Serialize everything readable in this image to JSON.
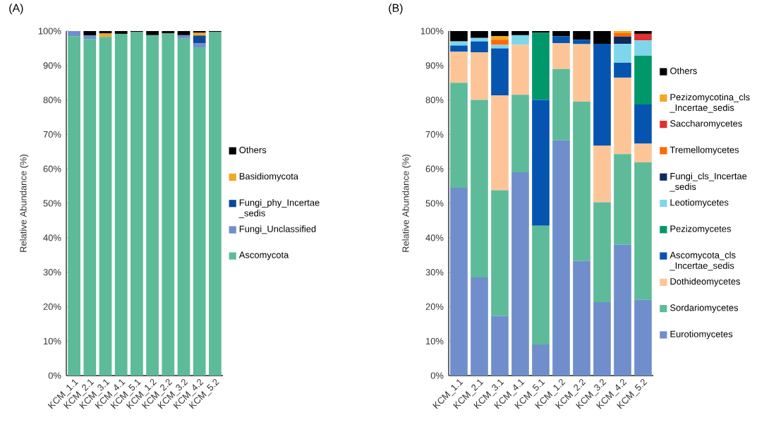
{
  "chart_data": [
    {
      "type": "bar",
      "title": "(A)",
      "ylabel": "Relative Abundance (%)",
      "stacked": true,
      "legend": "right",
      "categories": [
        "KCM_1.1",
        "KCM_2.1",
        "KCM_3.1",
        "KCM_4.1",
        "KCM_5.1",
        "KCM_1.2",
        "KCM_2.2",
        "KCM_3.2",
        "KCM_4.2",
        "KCM_5.2"
      ],
      "ylim": [
        0,
        100
      ],
      "yticks": [
        {
          "value": 0,
          "label": "0%"
        },
        {
          "value": 10,
          "label": "10%"
        },
        {
          "value": 20,
          "label": "20%"
        },
        {
          "value": 30,
          "label": "30%"
        },
        {
          "value": 40,
          "label": "40%"
        },
        {
          "value": 50,
          "label": "50%"
        },
        {
          "value": 60,
          "label": "60%"
        },
        {
          "value": 70,
          "label": "70%"
        },
        {
          "value": 80,
          "label": "80%"
        },
        {
          "value": 90,
          "label": "90%"
        },
        {
          "value": 100,
          "label": "100%"
        }
      ],
      "series": [
        {
          "name": "Ascomycota",
          "color": "#5dbb9a",
          "values": [
            98.5,
            97.7,
            98.3,
            99.2,
            99.7,
            98.8,
            99.3,
            97.8,
            95.3,
            99.7
          ]
        },
        {
          "name": "Fungi_Unclassified",
          "color": "#6f8ecb",
          "values": [
            1.5,
            1.0,
            null,
            null,
            null,
            null,
            null,
            1.0,
            1.2,
            null
          ]
        },
        {
          "name": "Fungi_phy_Incertae_sedis",
          "color": "#0b4a9a",
          "values": [
            null,
            null,
            null,
            null,
            null,
            null,
            null,
            null,
            2.2,
            null
          ]
        },
        {
          "name": "Basidiomycota",
          "color": "#f5a623",
          "values": [
            null,
            null,
            1.0,
            null,
            null,
            null,
            null,
            null,
            0.8,
            null
          ]
        },
        {
          "name": "Others",
          "color": "#000000",
          "values": [
            null,
            1.3,
            0.7,
            0.8,
            0.3,
            1.2,
            0.7,
            1.2,
            0.5,
            0.3
          ]
        }
      ]
    },
    {
      "type": "bar",
      "title": "(B)",
      "ylabel": "Relative Abundance (%)",
      "stacked": true,
      "legend": "right",
      "categories": [
        "KCM_1.1",
        "KCM_2.1",
        "KCM_3.1",
        "KCM_4.1",
        "KCM_5.1",
        "KCM_1.2",
        "KCM_2.2",
        "KCM_3.2",
        "KCM_4.2",
        "KCM_5.2"
      ],
      "ylim": [
        0,
        100
      ],
      "yticks": [
        {
          "value": 0,
          "label": "0%"
        },
        {
          "value": 10,
          "label": "10%"
        },
        {
          "value": 20,
          "label": "20%"
        },
        {
          "value": 30,
          "label": "30%"
        },
        {
          "value": 40,
          "label": "40%"
        },
        {
          "value": 50,
          "label": "50%"
        },
        {
          "value": 60,
          "label": "60%"
        },
        {
          "value": 70,
          "label": "70%"
        },
        {
          "value": 80,
          "label": "80%"
        },
        {
          "value": 90,
          "label": "90%"
        },
        {
          "value": 100,
          "label": "100%"
        }
      ],
      "series": [
        {
          "name": "Eurotiomycetes",
          "color": "#6f8ecb",
          "values": [
            54.5,
            28.5,
            17.3,
            59.0,
            9.0,
            68.3,
            33.3,
            21.3,
            38.0,
            22.0
          ]
        },
        {
          "name": "Sordariomycetes",
          "color": "#5dbb9a",
          "values": [
            30.5,
            51.5,
            36.5,
            22.5,
            34.5,
            20.7,
            46.2,
            29.0,
            26.3,
            39.9
          ]
        },
        {
          "name": "Dothideomycetes",
          "color": "#fdc597",
          "values": [
            9.0,
            13.8,
            27.5,
            14.5,
            null,
            7.5,
            16.7,
            16.4,
            22.2,
            5.4
          ]
        },
        {
          "name": "Ascomycota_cls_Incertae_sedis",
          "color": "#0554b0",
          "values": [
            1.8,
            3.2,
            13.7,
            null,
            36.5,
            2.0,
            1.3,
            29.6,
            4.3,
            11.4
          ]
        },
        {
          "name": "Pezizomycetes",
          "color": "#00976a",
          "values": [
            null,
            null,
            null,
            null,
            19.5,
            null,
            null,
            null,
            null,
            14.2
          ]
        },
        {
          "name": "Leotiomycetes",
          "color": "#7dd6ea",
          "values": [
            1.2,
            1.0,
            1.0,
            2.8,
            null,
            null,
            null,
            null,
            5.5,
            4.4
          ]
        },
        {
          "name": "Fungi_cls_Incertae_sedis",
          "color": "#0d2b5c",
          "values": [
            null,
            null,
            null,
            null,
            null,
            null,
            null,
            null,
            2.1,
            null
          ]
        },
        {
          "name": "Tremellomycetes",
          "color": "#ff6a00",
          "values": [
            null,
            null,
            1.5,
            null,
            null,
            null,
            null,
            null,
            1.0,
            null
          ]
        },
        {
          "name": "Saccharomycetes",
          "color": "#e03030",
          "values": [
            null,
            null,
            null,
            null,
            null,
            null,
            null,
            null,
            null,
            1.9
          ]
        },
        {
          "name": "Pezizomycotina_cls_Incertae_sedis",
          "color": "#f5a623",
          "values": [
            null,
            null,
            1.0,
            null,
            null,
            null,
            null,
            null,
            0.6,
            null
          ]
        },
        {
          "name": "Others",
          "color": "#000000",
          "values": [
            3.0,
            2.0,
            1.5,
            1.2,
            0.5,
            1.5,
            2.5,
            3.7,
            null,
            0.8
          ]
        }
      ]
    }
  ]
}
